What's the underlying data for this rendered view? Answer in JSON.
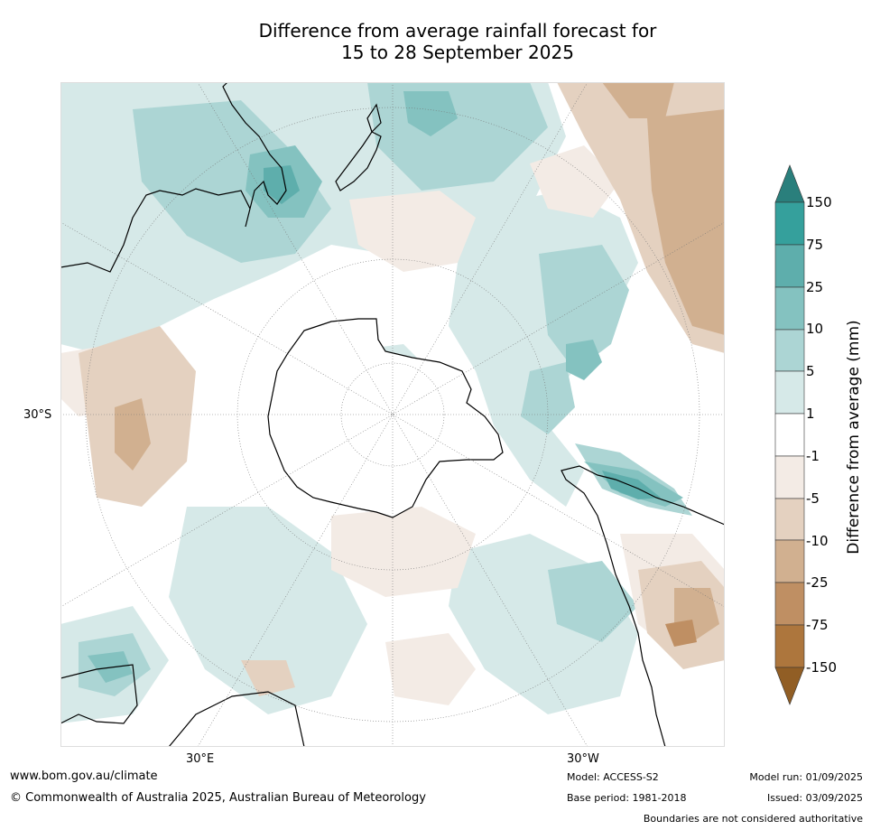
{
  "title_line1": "Difference from average rainfall forecast for",
  "title_line2": "15 to 28 September 2025",
  "axis_labels": {
    "lon_east": "30°E",
    "lon_west": "30°W",
    "lat": "30°S"
  },
  "colorbar": {
    "title": "Difference from average (mm)",
    "ticks": [
      "150",
      "75",
      "25",
      "10",
      "5",
      "1",
      "-1",
      "-5",
      "-10",
      "-25",
      "-75",
      "-150"
    ],
    "colors": {
      "over": "#2a7f7c",
      "c150_75": "#35a09c",
      "c75_25": "#5eaeac",
      "c25_10": "#84c2c0",
      "c10_5": "#acd5d4",
      "c5_1": "#d6e9e8",
      "c1_m1": "#ffffff",
      "cm1_m5": "#f3ebe5",
      "cm5_m10": "#e4d1c0",
      "cm10_m25": "#d1b090",
      "cm25_m75": "#bf8f63",
      "cm75_m150": "#ad763d",
      "under": "#915e25"
    }
  },
  "footer": {
    "website": "www.bom.gov.au/climate",
    "copyright": "© Commonwealth of Australia 2025, Australian Bureau of Meteorology",
    "model": "Model: ACCESS-S2",
    "base_period": "Base period: 1981-2018",
    "model_run": "Model run: 01/09/2025",
    "issued": "Issued: 03/09/2025",
    "disclaimer": "Boundaries are not considered authoritative"
  }
}
